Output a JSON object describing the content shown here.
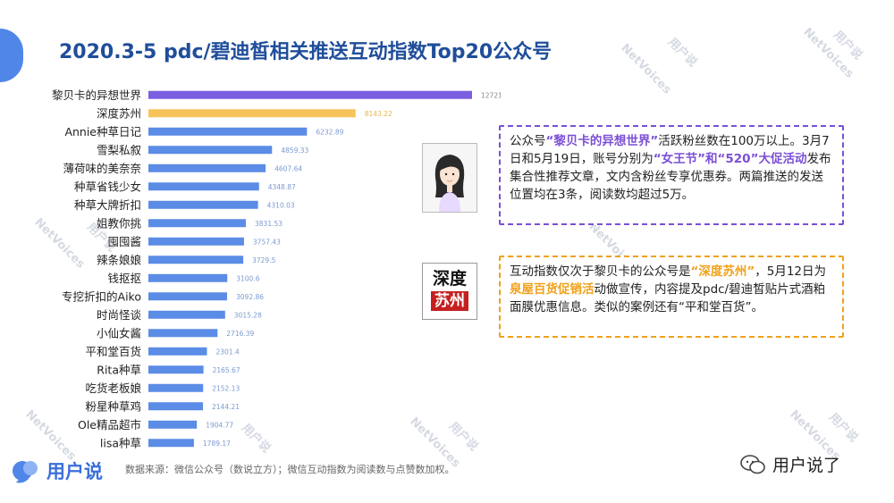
{
  "title": "2020.3-5 pdc/碧迪皙相关推送互动指数Top20公众号",
  "watermark": {
    "brand": "用户说",
    "en": "NetVoices"
  },
  "chart_data": {
    "type": "bar",
    "orientation": "horizontal",
    "categories": [
      "黎贝卡的异想世界",
      "深度苏州",
      "Annie种草日记",
      "雪梨私叙",
      "薄荷味的美奈奈",
      "种草省钱少女",
      "种草大牌折扣",
      "姐教你挑",
      "囤囤酱",
      "辣条娘娘",
      "钱抠抠",
      "专挖折扣的Aiko",
      "时尚怪谈",
      "小仙女酱",
      "平和堂百货",
      "Rita种草",
      "吃货老板娘",
      "粉星种草鸡",
      "Ole精品超市",
      "lisa种草"
    ],
    "values": [
      12721.74,
      8143.22,
      6232.89,
      4859.33,
      4607.64,
      4348.87,
      4310.03,
      3831.53,
      3757.43,
      3729.5,
      3100.6,
      3092.86,
      3015.28,
      2716.39,
      2301.4,
      2165.67,
      2152.13,
      2144.21,
      1904.77,
      1789.17
    ],
    "value_labels": [
      "12721.74",
      "8143.22",
      "6232.89",
      "4859.33",
      "4607.64",
      "4348.87",
      "4310.03",
      "3831.53",
      "3757.43",
      "3729.5",
      "3100.6",
      "3092.86",
      "3015.28",
      "2716.39",
      "2301.4",
      "2165.67",
      "2152.13",
      "2144.21",
      "1904.77",
      "1789.17"
    ],
    "bar_colors": [
      "#7b5fe0",
      "#f6c35a",
      "#5b8ce6"
    ],
    "label_colors": [
      "#888888",
      "#e8b64a",
      "#7b9ad0"
    ],
    "xlim": [
      0,
      12721.74
    ],
    "grid": false,
    "legend": "none"
  },
  "callout1": {
    "p1": "公众号",
    "h1": "“黎贝卡的异想世界”",
    "p2": "活跃粉丝数在100万以上。3月7日和5月19日，账号分别为",
    "h2": "“女王节”和“520”大促活动",
    "p3": "发布集合性推荐文章，文内含粉丝专享优惠券。两篇推送的发送位置均在3条，阅读数均超过5万。",
    "border_color": "#7b4fd6"
  },
  "callout2": {
    "p1": "互动指数仅次于黎贝卡的公众号是",
    "h1": "“深度苏州”",
    "p2": "，5月12日为",
    "h2": "泉屋百货促销活",
    "p3": "动做宣传，内容提及pdc/碧迪皙贴片式酒粕面膜优惠信息。类似的案例还有“平和堂百货”。",
    "border_color": "#f0a11a"
  },
  "logo_box": {
    "line1": "深度",
    "line2": "苏州"
  },
  "footer": {
    "brand": "用户说",
    "source": "数据来源：微信公众号（数说立方）；微信互动指数为阅读数与点赞数加权。",
    "wechat_brand": "用户说了"
  }
}
